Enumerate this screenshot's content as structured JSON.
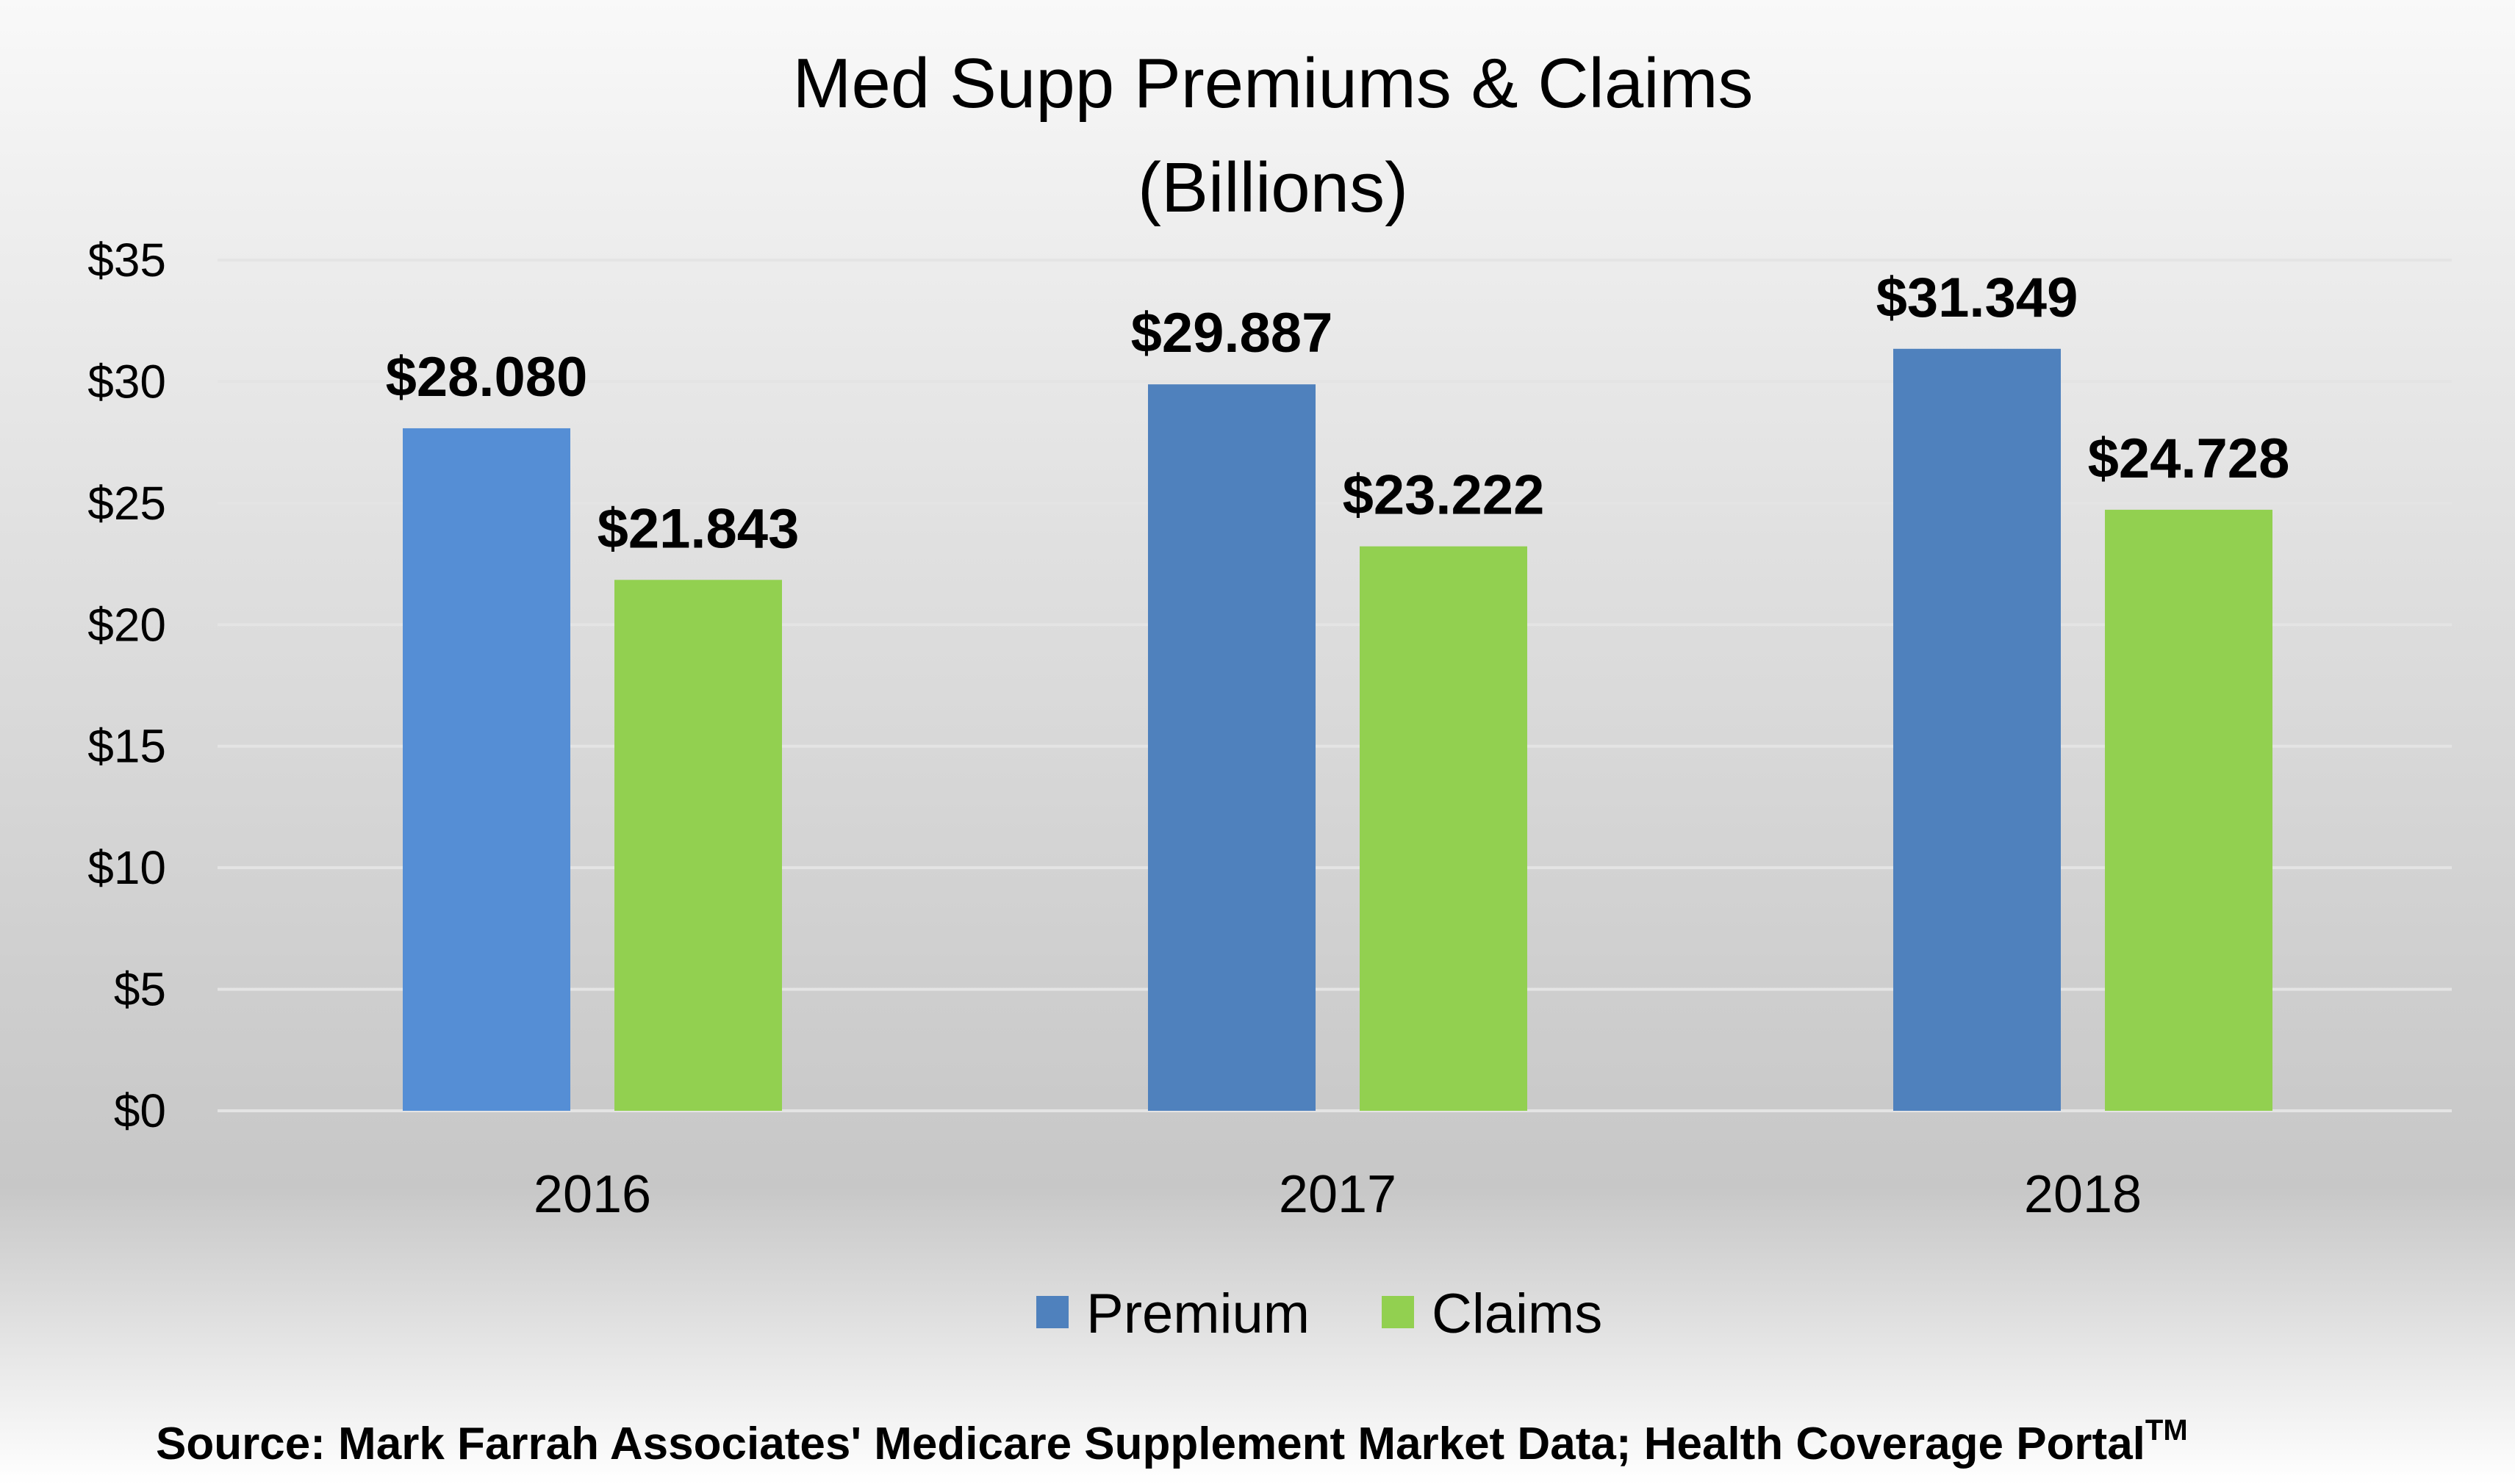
{
  "chart_data": {
    "type": "bar",
    "title_line1": "Med Supp Premiums & Claims",
    "title_line2": "(Billions)",
    "xlabel": "",
    "ylabel": "",
    "ylim": [
      0,
      35
    ],
    "y_ticks": [
      0,
      5,
      10,
      15,
      20,
      25,
      30,
      35
    ],
    "y_tick_labels": [
      "$0",
      "$5",
      "$10",
      "$15",
      "$20",
      "$25",
      "$30",
      "$35"
    ],
    "categories": [
      "2016",
      "2017",
      "2018"
    ],
    "series": [
      {
        "name": "Premium",
        "values": [
          28.08,
          29.887,
          31.349
        ],
        "labels": [
          "$28.080",
          "$29.887",
          "$31.349"
        ],
        "colors": [
          "#558ed5",
          "#4f81bd",
          "#4f81bd"
        ]
      },
      {
        "name": "Claims",
        "values": [
          21.843,
          23.222,
          24.728
        ],
        "labels": [
          "$21.843",
          "$23.222",
          "$24.728"
        ],
        "colors": [
          "#92d050",
          "#92d050",
          "#92d050"
        ]
      }
    ],
    "legend": {
      "position": "bottom",
      "premium_color": "#4f81bd",
      "claims_color": "#92d050"
    },
    "grid": true,
    "gridline_color": "#e4e4e4"
  },
  "source": {
    "text": "Source:  Mark Farrah Associates' Medicare Supplement Market Data; Health Coverage Portal",
    "trademark": "TM"
  }
}
